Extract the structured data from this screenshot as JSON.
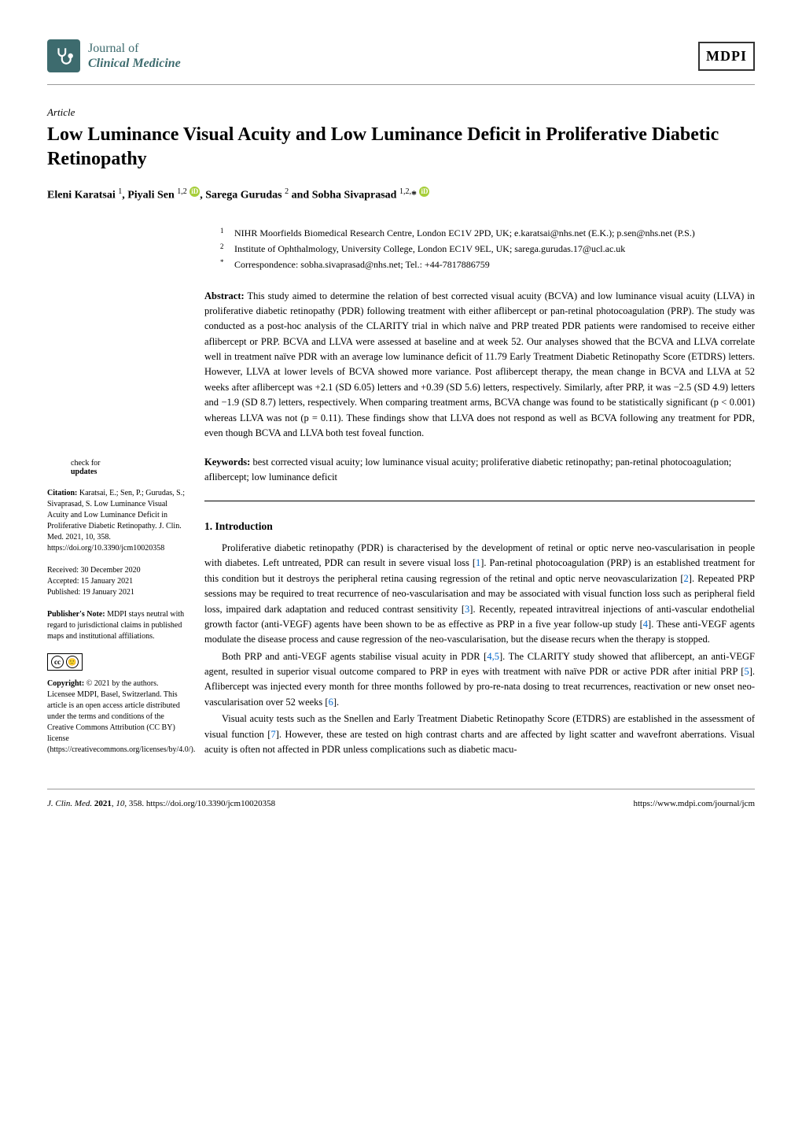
{
  "journal": {
    "line1": "Journal of",
    "line2": "Clinical Medicine"
  },
  "publisher_logo": "MDPI",
  "article_type": "Article",
  "title": "Low Luminance Visual Acuity and Low Luminance Deficit in Proliferative Diabetic Retinopathy",
  "authors": "Eleni Karatsai ¹, Piyali Sen ¹,² ⓘ, Sarega Gurudas ² and Sobha Sivaprasad ¹,²,* ⓘ",
  "affiliations": [
    {
      "num": "1",
      "text": "NIHR Moorfields Biomedical Research Centre, London EC1V 2PD, UK; e.karatsai@nhs.net (E.K.); p.sen@nhs.net (P.S.)"
    },
    {
      "num": "2",
      "text": "Institute of Ophthalmology, University College, London EC1V 9EL, UK; sarega.gurudas.17@ucl.ac.uk"
    },
    {
      "num": "*",
      "text": "Correspondence: sobha.sivaprasad@nhs.net; Tel.: +44-7817886759"
    }
  ],
  "abstract_label": "Abstract:",
  "abstract_text": " This study aimed to determine the relation of best corrected visual acuity (BCVA) and low luminance visual acuity (LLVA) in proliferative diabetic retinopathy (PDR) following treatment with either aflibercept or pan-retinal photocoagulation (PRP). The study was conducted as a post-hoc analysis of the CLARITY trial in which naïve and PRP treated PDR patients were randomised to receive either aflibercept or PRP. BCVA and LLVA were assessed at baseline and at week 52. Our analyses showed that the BCVA and LLVA correlate well in treatment naïve PDR with an average low luminance deficit of 11.79 Early Treatment Diabetic Retinopathy Score (ETDRS) letters. However, LLVA at lower levels of BCVA showed more variance. Post aflibercept therapy, the mean change in BCVA and LLVA at 52 weeks after aflibercept was +2.1 (SD 6.05) letters and +0.39 (SD 5.6) letters, respectively. Similarly, after PRP, it was −2.5 (SD 4.9) letters and −1.9 (SD 8.7) letters, respectively. When comparing treatment arms, BCVA change was found to be statistically significant (p < 0.001) whereas LLVA was not (p = 0.11). These findings show that LLVA does not respond as well as BCVA following any treatment for PDR, even though BCVA and LLVA both test foveal function.",
  "keywords_label": "Keywords:",
  "keywords_text": " best corrected visual acuity; low luminance visual acuity; proliferative diabetic retinopathy; pan-retinal photocoagulation; aflibercept; low luminance deficit",
  "section1_heading": "1. Introduction",
  "intro_p1": "Proliferative diabetic retinopathy (PDR) is characterised by the development of retinal or optic nerve neo-vascularisation in people with diabetes. Left untreated, PDR can result in severe visual loss [1]. Pan-retinal photocoagulation (PRP) is an established treatment for this condition but it destroys the peripheral retina causing regression of the retinal and optic nerve neovascularization [2]. Repeated PRP sessions may be required to treat recurrence of neo-vascularisation and may be associated with visual function loss such as peripheral field loss, impaired dark adaptation and reduced contrast sensitivity [3]. Recently, repeated intravitreal injections of anti-vascular endothelial growth factor (anti-VEGF) agents have been shown to be as effective as PRP in a five year follow-up study [4]. These anti-VEGF agents modulate the disease process and cause regression of the neo-vascularisation, but the disease recurs when the therapy is stopped.",
  "intro_p2": "Both PRP and anti-VEGF agents stabilise visual acuity in PDR [4,5]. The CLARITY study showed that aflibercept, an anti-VEGF agent, resulted in superior visual outcome compared to PRP in eyes with treatment with naïve PDR or active PDR after initial PRP [5]. Aflibercept was injected every month for three months followed by pro-re-nata dosing to treat recurrences, reactivation or new onset neo-vascularisation over 52 weeks [6].",
  "intro_p3": "Visual acuity tests such as the Snellen and Early Treatment Diabetic Retinopathy Score (ETDRS) are established in the assessment of visual function [7]. However, these are tested on high contrast charts and are affected by light scatter and wavefront aberrations. Visual acuity is often not affected in PDR unless complications such as diabetic macu-",
  "sidebar": {
    "check_line1": "check for",
    "check_line2": "updates",
    "citation_label": "Citation:",
    "citation_text": " Karatsai, E.; Sen, P.; Gurudas, S.; Sivaprasad, S. Low Luminance Visual Acuity and Low Luminance Deficit in Proliferative Diabetic Retinopathy. J. Clin. Med. 2021, 10, 358. https://doi.org/10.3390/jcm10020358",
    "received": "Received: 30 December 2020",
    "accepted": "Accepted: 15 January 2021",
    "published": "Published: 19 January 2021",
    "publisher_note_label": "Publisher's Note:",
    "publisher_note_text": " MDPI stays neutral with regard to jurisdictional claims in published maps and institutional affiliations.",
    "copyright_label": "Copyright:",
    "copyright_text": " © 2021 by the authors. Licensee MDPI, Basel, Switzerland. This article is an open access article distributed under the terms and conditions of the Creative Commons Attribution (CC BY) license (https://creativecommons.org/licenses/by/4.0/)."
  },
  "footer": {
    "left": "J. Clin. Med. 2021, 10, 358. https://doi.org/10.3390/jcm10020358",
    "right": "https://www.mdpi.com/journal/jcm"
  },
  "colors": {
    "journal_teal": "#3d6b6e",
    "link_blue": "#0066cc",
    "orcid_green": "#a6ce39"
  }
}
